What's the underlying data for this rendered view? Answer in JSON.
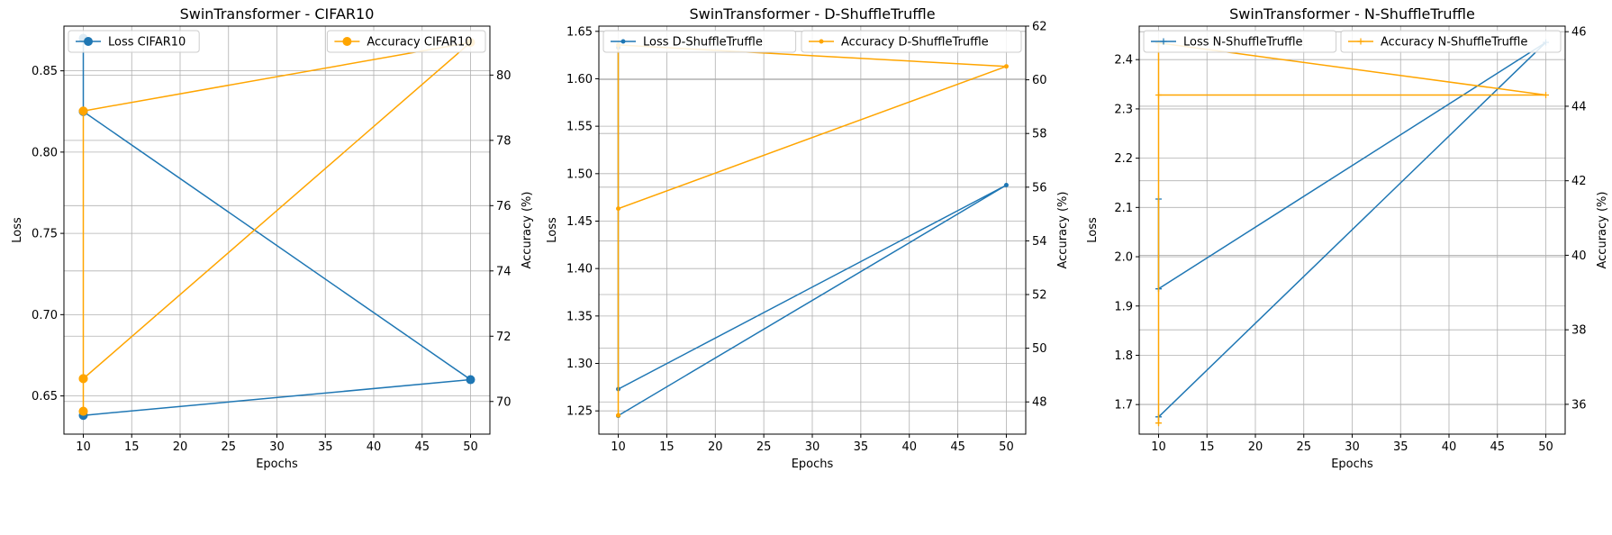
{
  "colors": {
    "loss": "#1f77b4",
    "accuracy": "#ffa500",
    "grid": "#b0b0b0"
  },
  "chart_data": [
    {
      "type": "line",
      "title": "SwinTransformer - CIFAR10",
      "xlabel": "Epochs",
      "ylabel": "Loss",
      "y2label": "Accuracy (%)",
      "grid": true,
      "marker": "circle",
      "xlim": [
        8.0,
        52.0
      ],
      "xticks": [
        10,
        15,
        20,
        25,
        30,
        35,
        40,
        45,
        50
      ],
      "ylim": [
        0.6265,
        0.8775
      ],
      "yticks": [
        0.65,
        0.7,
        0.75,
        0.8,
        0.85
      ],
      "y2lim": [
        69.0,
        81.5
      ],
      "y2ticks": [
        70,
        72,
        74,
        76,
        78,
        80
      ],
      "series": [
        {
          "name": "Loss CIFAR10",
          "axis": "left",
          "legend": "upper-left",
          "x": [
            10,
            10,
            10,
            50,
            10
          ],
          "y": [
            0.87,
            0.825,
            0.825,
            0.66,
            0.638
          ]
        },
        {
          "name": "Accuracy CIFAR10",
          "axis": "right",
          "legend": "upper-right",
          "x": [
            10,
            10,
            10,
            50,
            10,
            10
          ],
          "y": [
            70.7,
            69.7,
            78.9,
            81.0,
            70.7,
            69.7
          ]
        }
      ]
    },
    {
      "type": "line",
      "title": "SwinTransformer - D-ShuffleTruffle",
      "xlabel": "Epochs",
      "ylabel": "Loss",
      "y2label": "Accuracy (%)",
      "grid": true,
      "marker": "dot",
      "xlim": [
        8.0,
        52.0
      ],
      "xticks": [
        10,
        15,
        20,
        25,
        30,
        35,
        40,
        45,
        50
      ],
      "ylim": [
        1.2255,
        1.6555
      ],
      "yticks": [
        1.25,
        1.3,
        1.35,
        1.4,
        1.45,
        1.5,
        1.55,
        1.6,
        1.65
      ],
      "y2lim": [
        46.8,
        62.0
      ],
      "y2ticks": [
        48,
        50,
        52,
        54,
        56,
        58,
        60,
        62
      ],
      "series": [
        {
          "name": "Loss D-ShuffleTruffle",
          "axis": "left",
          "legend": "upper-left",
          "x": [
            10,
            10,
            50,
            10,
            10,
            10
          ],
          "y": [
            1.633,
            1.273,
            1.488,
            1.245,
            1.245,
            1.245
          ]
        },
        {
          "name": "Accuracy D-ShuffleTruffle",
          "axis": "right",
          "legend": "upper-right",
          "x": [
            10,
            10,
            50,
            10,
            10
          ],
          "y": [
            47.5,
            55.2,
            60.5,
            61.3,
            47.5
          ]
        }
      ]
    },
    {
      "type": "line",
      "title": "SwinTransformer - N-ShuffleTruffle",
      "xlabel": "Epochs",
      "ylabel": "Loss",
      "y2label": "Accuracy (%)",
      "grid": true,
      "marker": "plus",
      "xlim": [
        8.0,
        52.0
      ],
      "xticks": [
        10,
        15,
        20,
        25,
        30,
        35,
        40,
        45,
        50
      ],
      "ylim": [
        1.64,
        2.468
      ],
      "yticks": [
        1.7,
        1.8,
        1.9,
        2.0,
        2.1,
        2.2,
        2.3,
        2.4
      ],
      "y2lim": [
        35.2,
        46.15
      ],
      "y2ticks": [
        36,
        38,
        40,
        42,
        44,
        46
      ],
      "series": [
        {
          "name": "Loss N-ShuffleTruffle",
          "axis": "left",
          "legend": "upper-left",
          "x": [
            10,
            10,
            10,
            50,
            10,
            10
          ],
          "y": [
            2.117,
            1.935,
            1.935,
            2.435,
            1.675,
            1.675
          ]
        },
        {
          "name": "Accuracy N-ShuffleTruffle",
          "axis": "right",
          "legend": "upper-right",
          "x": [
            10,
            10,
            10,
            50,
            10,
            10
          ],
          "y": [
            35.5,
            45.7,
            45.7,
            44.3,
            44.3,
            35.5
          ]
        }
      ]
    }
  ]
}
